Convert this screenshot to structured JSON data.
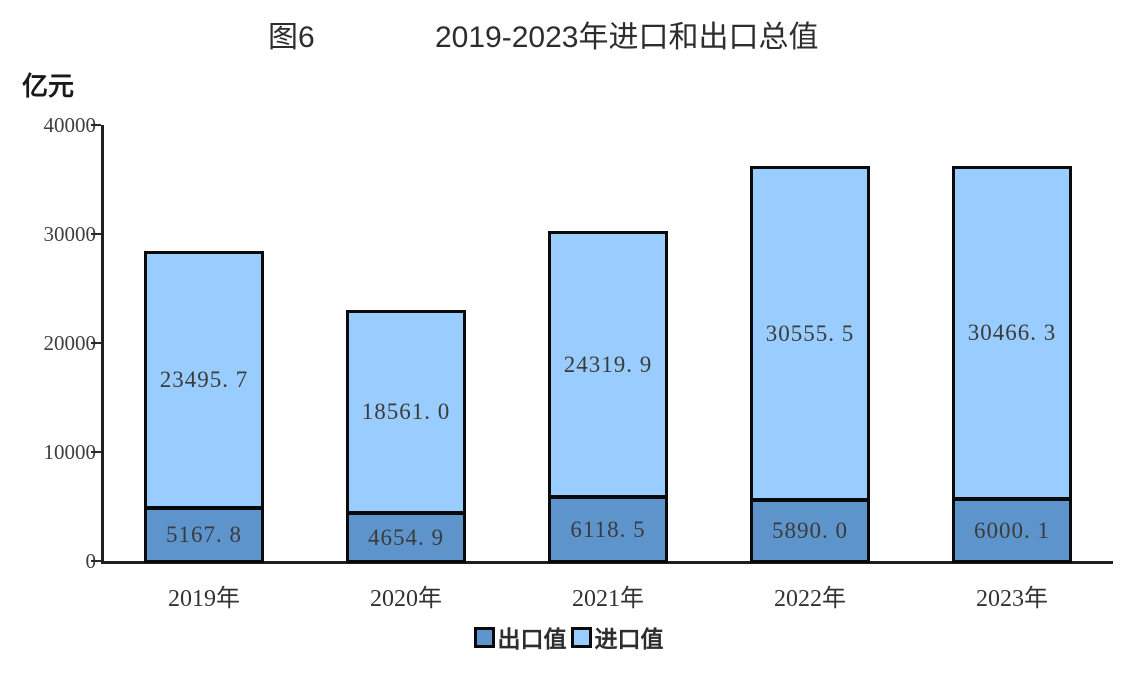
{
  "title": {
    "figure_label": "图6",
    "text": "2019-2023年进口和出口总值"
  },
  "axes": {
    "y_unit": "亿元",
    "y_max": 40000,
    "y_ticks": [
      "40000",
      "30000",
      "20000",
      "10000",
      "0"
    ]
  },
  "legend": [
    {
      "label": "出口值",
      "color": "#5D94CB"
    },
    {
      "label": "进口值",
      "color": "#99CCFF"
    }
  ],
  "chart_data": {
    "type": "bar",
    "stacked": true,
    "title": "图6 2019-2023年进口和出口总值",
    "ylabel": "亿元",
    "xlabel": "",
    "ylim": [
      0,
      40000
    ],
    "grid": false,
    "legend_position": "bottom",
    "categories": [
      "2019年",
      "2020年",
      "2021年",
      "2022年",
      "2023年"
    ],
    "series": [
      {
        "name": "出口值",
        "color": "#5D94CB",
        "values": [
          5167.8,
          4654.9,
          6118.5,
          5890.0,
          6000.1
        ],
        "labels": [
          "5167. 8",
          "4654. 9",
          "6118. 5",
          "5890. 0",
          "6000. 1"
        ]
      },
      {
        "name": "进口值",
        "color": "#99CCFF",
        "values": [
          23495.7,
          18561.0,
          24319.9,
          30555.5,
          30466.3
        ],
        "labels": [
          "23495. 7",
          "18561. 0",
          "24319. 9",
          "30555. 5",
          "30466. 3"
        ]
      }
    ]
  }
}
